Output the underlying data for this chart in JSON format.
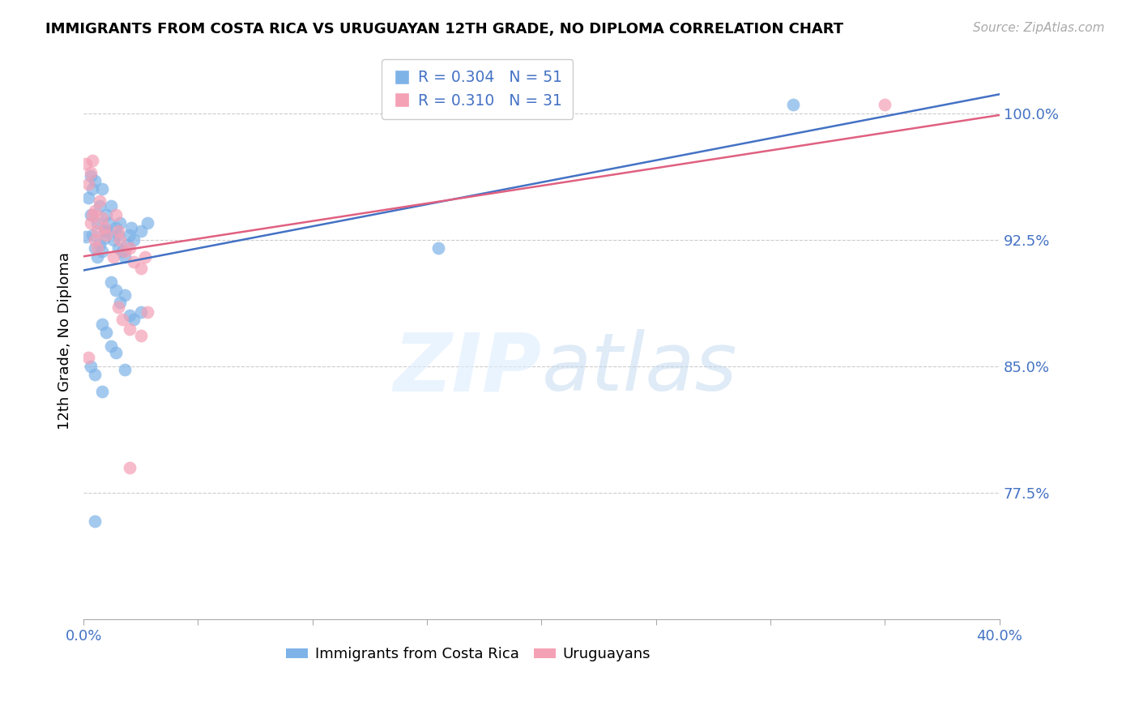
{
  "title": "IMMIGRANTS FROM COSTA RICA VS URUGUAYAN 12TH GRADE, NO DIPLOMA CORRELATION CHART",
  "source": "Source: ZipAtlas.com",
  "ylabel": "12th Grade, No Diploma",
  "yticks": [
    0.775,
    0.85,
    0.925,
    1.0
  ],
  "ytick_labels": [
    "77.5%",
    "85.0%",
    "92.5%",
    "100.0%"
  ],
  "xlim": [
    0.0,
    0.4
  ],
  "ylim": [
    0.7,
    1.03
  ],
  "legend1_label": "Immigrants from Costa Rica",
  "legend2_label": "Uruguayans",
  "R1": 0.304,
  "N1": 51,
  "R2": 0.31,
  "N2": 31,
  "color_blue": "#7EB3E8",
  "color_pink": "#F4A0B5",
  "color_blue_line": "#4472C4",
  "color_pink_line": "#E06080",
  "color_axis_labels": "#4472C4",
  "blue_points": [
    [
      0.001,
      0.927
    ],
    [
      0.002,
      0.95
    ],
    [
      0.003,
      0.963
    ],
    [
      0.004,
      0.955
    ],
    [
      0.005,
      0.96
    ],
    [
      0.003,
      0.94
    ],
    [
      0.006,
      0.935
    ],
    [
      0.004,
      0.928
    ],
    [
      0.007,
      0.945
    ],
    [
      0.008,
      0.955
    ],
    [
      0.005,
      0.92
    ],
    [
      0.009,
      0.93
    ],
    [
      0.01,
      0.94
    ],
    [
      0.006,
      0.915
    ],
    [
      0.007,
      0.922
    ],
    [
      0.008,
      0.918
    ],
    [
      0.011,
      0.935
    ],
    [
      0.012,
      0.945
    ],
    [
      0.009,
      0.926
    ],
    [
      0.01,
      0.93
    ],
    [
      0.013,
      0.925
    ],
    [
      0.014,
      0.932
    ],
    [
      0.015,
      0.928
    ],
    [
      0.016,
      0.935
    ],
    [
      0.015,
      0.92
    ],
    [
      0.017,
      0.918
    ],
    [
      0.018,
      0.915
    ],
    [
      0.019,
      0.922
    ],
    [
      0.02,
      0.928
    ],
    [
      0.021,
      0.932
    ],
    [
      0.022,
      0.925
    ],
    [
      0.025,
      0.93
    ],
    [
      0.028,
      0.935
    ],
    [
      0.012,
      0.9
    ],
    [
      0.014,
      0.895
    ],
    [
      0.016,
      0.888
    ],
    [
      0.018,
      0.892
    ],
    [
      0.02,
      0.88
    ],
    [
      0.022,
      0.878
    ],
    [
      0.025,
      0.882
    ],
    [
      0.008,
      0.875
    ],
    [
      0.01,
      0.87
    ],
    [
      0.012,
      0.862
    ],
    [
      0.014,
      0.858
    ],
    [
      0.003,
      0.85
    ],
    [
      0.005,
      0.845
    ],
    [
      0.018,
      0.848
    ],
    [
      0.008,
      0.835
    ],
    [
      0.005,
      0.758
    ],
    [
      0.155,
      0.92
    ],
    [
      0.31,
      1.005
    ]
  ],
  "pink_points": [
    [
      0.001,
      0.97
    ],
    [
      0.002,
      0.958
    ],
    [
      0.003,
      0.965
    ],
    [
      0.004,
      0.972
    ],
    [
      0.005,
      0.942
    ],
    [
      0.003,
      0.935
    ],
    [
      0.006,
      0.93
    ],
    [
      0.004,
      0.94
    ],
    [
      0.007,
      0.948
    ],
    [
      0.008,
      0.938
    ],
    [
      0.005,
      0.925
    ],
    [
      0.009,
      0.932
    ],
    [
      0.01,
      0.928
    ],
    [
      0.006,
      0.92
    ],
    [
      0.014,
      0.94
    ],
    [
      0.015,
      0.93
    ],
    [
      0.016,
      0.925
    ],
    [
      0.013,
      0.915
    ],
    [
      0.018,
      0.918
    ],
    [
      0.02,
      0.92
    ],
    [
      0.022,
      0.912
    ],
    [
      0.025,
      0.908
    ],
    [
      0.027,
      0.915
    ],
    [
      0.015,
      0.885
    ],
    [
      0.017,
      0.878
    ],
    [
      0.02,
      0.872
    ],
    [
      0.025,
      0.868
    ],
    [
      0.028,
      0.882
    ],
    [
      0.02,
      0.79
    ],
    [
      0.35,
      1.005
    ],
    [
      0.002,
      0.855
    ]
  ]
}
